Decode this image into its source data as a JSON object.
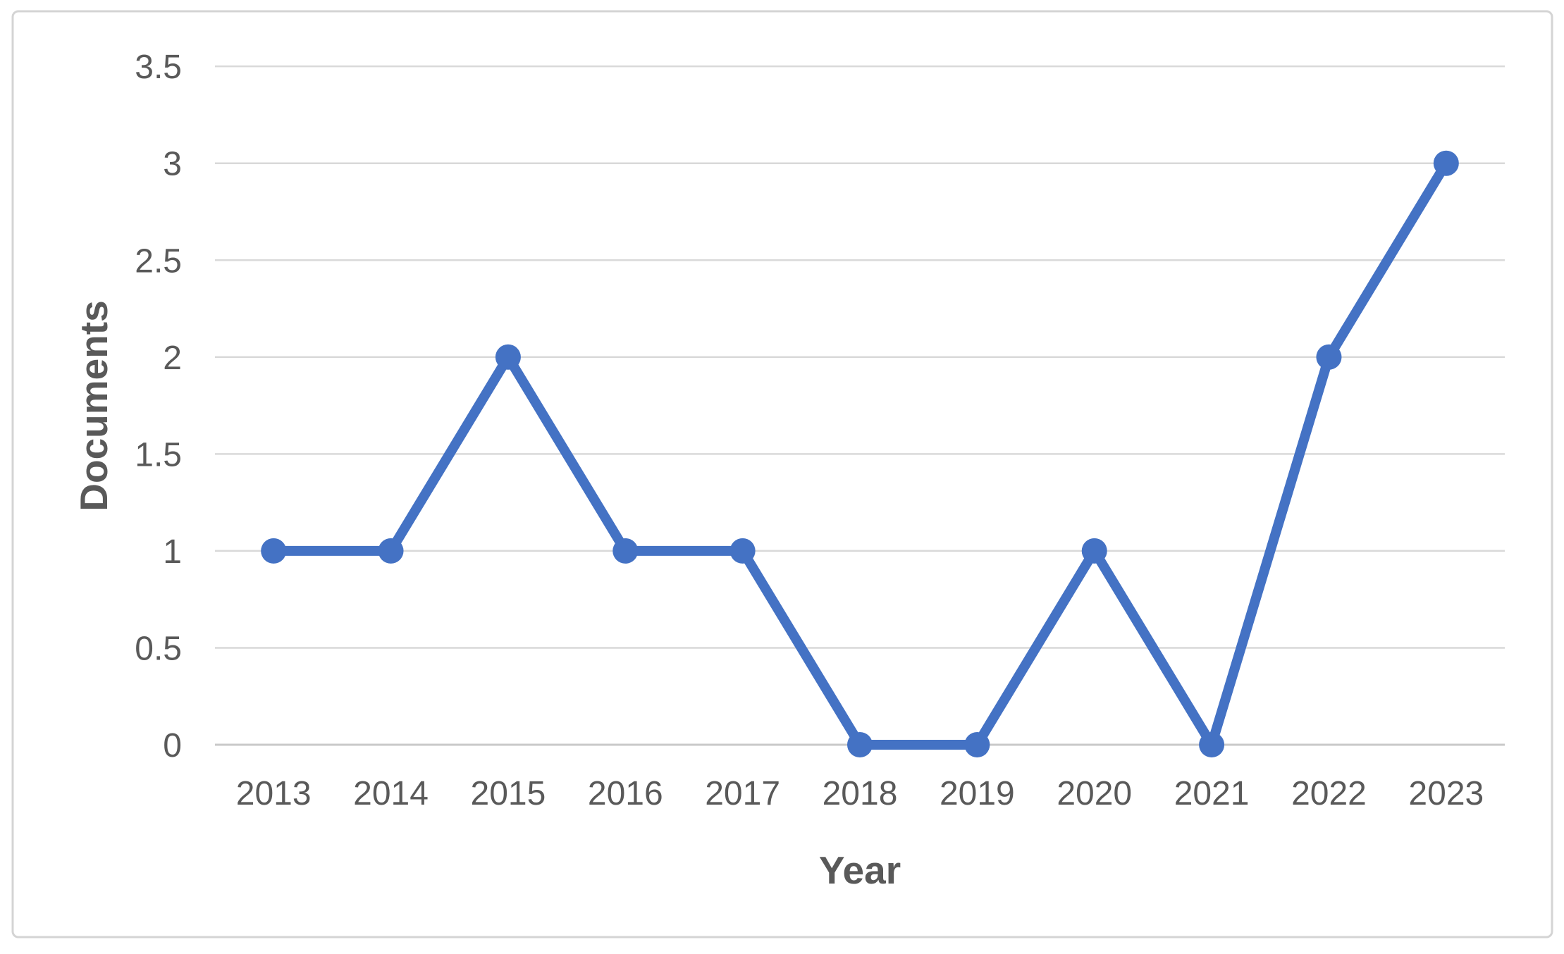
{
  "chart_data": {
    "type": "line",
    "title": "",
    "xlabel": "Year",
    "ylabel": "Documents",
    "categories": [
      "2013",
      "2014",
      "2015",
      "2016",
      "2017",
      "2018",
      "2019",
      "2020",
      "2021",
      "2022",
      "2023"
    ],
    "values": [
      1,
      1,
      2,
      1,
      1,
      0,
      0,
      1,
      0,
      2,
      3
    ],
    "ylim": [
      0,
      3.5
    ],
    "yticks": [
      0,
      0.5,
      1,
      1.5,
      2,
      2.5,
      3,
      3.5
    ],
    "ytick_labels": [
      "0",
      "0.5",
      "1",
      "1.5",
      "2",
      "2.5",
      "3",
      "3.5"
    ],
    "grid": true,
    "legend": "none",
    "marker": "circle"
  },
  "colors": {
    "line": "#4472C4",
    "marker": "#4472C4",
    "gridline": "#d9d9d9",
    "axis_line": "#c9c9c9",
    "text": "#595959",
    "border": "#d4d4d4",
    "background": "#ffffff"
  }
}
